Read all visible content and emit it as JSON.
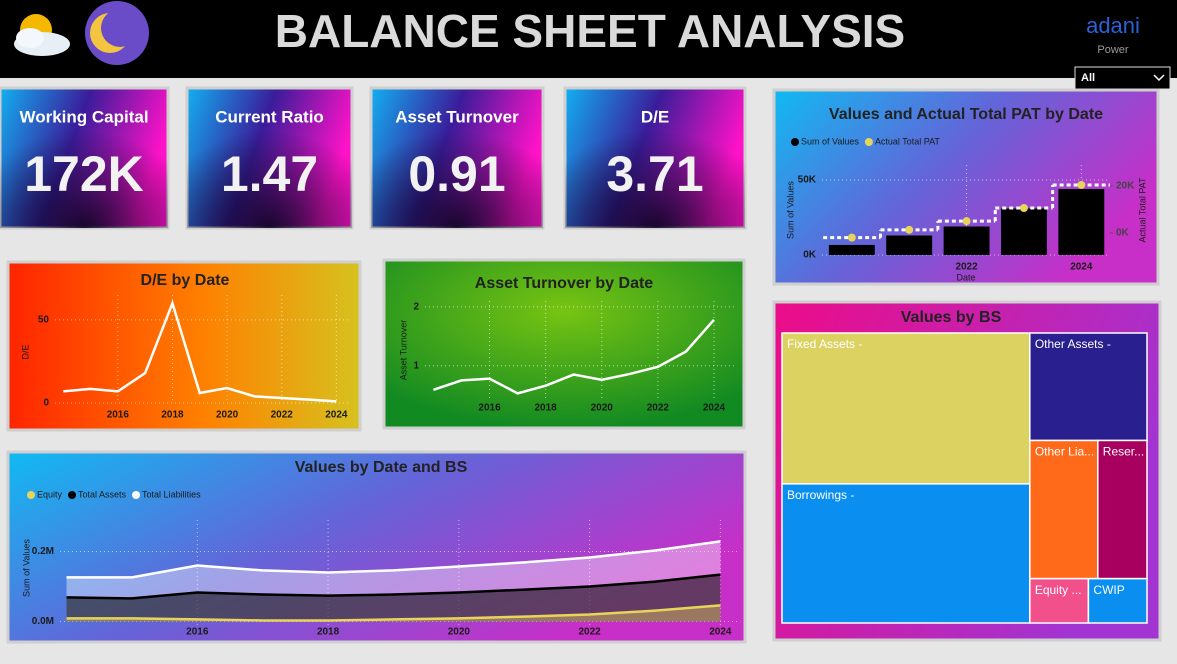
{
  "header": {
    "title": "BALANCE SHEET ANALYSIS",
    "logo": "adani",
    "logo_sub": "Power",
    "filter": "All"
  },
  "kpis": [
    {
      "label": "Working Capital",
      "value": "172K"
    },
    {
      "label": "Current Ratio",
      "value": "1.47"
    },
    {
      "label": "Asset Turnover",
      "value": "0.91"
    },
    {
      "label": "D/E",
      "value": "3.71"
    }
  ],
  "chart_data": [
    {
      "type": "line",
      "title": "D/E by Date",
      "ylabel": "D/E",
      "x": [
        2014,
        2015,
        2016,
        2017,
        2018,
        2019,
        2020,
        2021,
        2022,
        2023,
        2024
      ],
      "values": [
        7,
        8.5,
        7,
        18,
        60,
        6,
        9,
        4,
        3,
        2,
        1
      ],
      "color": "#ffffff",
      "xlim": [
        2013.7,
        2024.5
      ],
      "xticks": [
        2016,
        2018,
        2020,
        2022,
        2024
      ],
      "ylim": [
        0,
        65
      ],
      "yticks": [
        0,
        50
      ],
      "grid": true
    },
    {
      "type": "line",
      "title": "Asset Turnover by Date",
      "ylabel": "Asset Turnover",
      "x": [
        2014,
        2015,
        2016,
        2017,
        2018,
        2019,
        2020,
        2021,
        2022,
        2023,
        2024
      ],
      "values": [
        0.59,
        0.75,
        0.78,
        0.53,
        0.66,
        0.85,
        0.76,
        0.86,
        0.98,
        1.24,
        1.78
      ],
      "color": "#ffffff",
      "xlim": [
        2013.7,
        2024.75
      ],
      "xticks": [
        2016,
        2018,
        2020,
        2022,
        2024
      ],
      "ylim": [
        0.4,
        2.1
      ],
      "yticks": [
        1,
        2
      ],
      "grid": true
    },
    {
      "type": "combo",
      "title": "Values and Actual Total PAT by Date",
      "xlabel": "Date",
      "ylabel": "Sum of Values",
      "y2label": "Actual Total PAT",
      "x": [
        2020,
        2021,
        2022,
        2023,
        2024
      ],
      "series": [
        {
          "name": "Sum of Values",
          "type": "bar",
          "color": "#000000",
          "values": [
            6700,
            13000,
            19000,
            31000,
            44000
          ]
        },
        {
          "name": "Actual Total PAT",
          "type": "step",
          "axis": "y2",
          "color": "#e8d45a",
          "values": [
            -2000,
            1300,
            5000,
            10600,
            20400
          ]
        }
      ],
      "xlim": [
        2019.48,
        2024.5
      ],
      "xticks": [
        2022,
        2024
      ],
      "ylim": [
        0,
        60000
      ],
      "yticks": [
        {
          "value": 0,
          "label": "0K"
        },
        {
          "value": 50000,
          "label": "50K"
        }
      ],
      "y2lim": [
        -9400,
        28900
      ],
      "y2ticks": [
        {
          "value": 0,
          "label": "0K"
        },
        {
          "value": 20000,
          "label": "20K"
        }
      ],
      "grid": true,
      "legend": "top-left"
    },
    {
      "type": "area",
      "title": "Values by Date and BS",
      "ylabel": "Sum of Values",
      "x": [
        2014,
        2015,
        2016,
        2017,
        2018,
        2019,
        2020,
        2021,
        2022,
        2023,
        2024
      ],
      "series": [
        {
          "name": "Equity",
          "color": "#e8d45a",
          "values": [
            9000,
            9000,
            6000,
            3000,
            3000,
            6000,
            9000,
            14000,
            20000,
            31000,
            46000
          ]
        },
        {
          "name": "Total Assets",
          "color": "#000000",
          "values": [
            69000,
            66000,
            83000,
            77000,
            74000,
            77000,
            83000,
            91000,
            100000,
            114000,
            134000
          ]
        },
        {
          "name": "Total Liabilities",
          "color": "#ffffff",
          "values": [
            126000,
            126000,
            160000,
            146000,
            140000,
            146000,
            157000,
            169000,
            183000,
            203000,
            229000
          ]
        }
      ],
      "xlim": [
        2013.9,
        2024.3
      ],
      "xticks": [
        2016,
        2018,
        2020,
        2022,
        2024
      ],
      "ylim": [
        -10000,
        290000
      ],
      "yticks": [
        {
          "value": 0,
          "label": "0.0M"
        },
        {
          "value": 200000,
          "label": "0.2M"
        }
      ],
      "grid": true,
      "legend": "top-left"
    },
    {
      "type": "treemap",
      "title": "Values by BS",
      "labels": [
        "Fixed Assets -",
        "Borrowings -",
        "Other Assets -",
        "Other Lia...",
        "Reser...",
        "Equity ...",
        "CWIP"
      ],
      "values": [
        37400,
        34500,
        12600,
        9400,
        6800,
        2600,
        2600
      ],
      "colors": [
        "#dcd262",
        "#0a8ff0",
        "#2a1f8f",
        "#ff6a1a",
        "#a8005e",
        "#f2508a",
        "#0a8ff0"
      ]
    }
  ]
}
